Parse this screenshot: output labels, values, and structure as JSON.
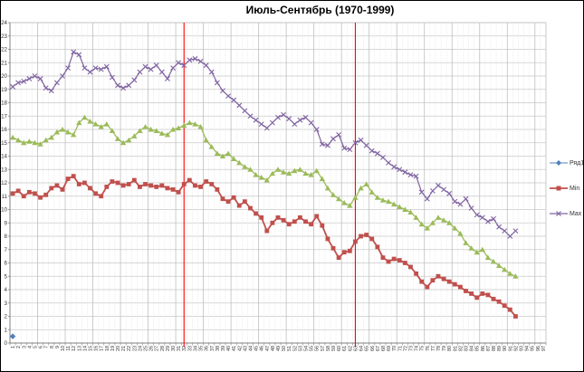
{
  "chart_data": {
    "type": "line",
    "title": "Июль-Сентябрь (1970-1999)",
    "xlabel": "",
    "ylabel": "",
    "ylim": [
      0,
      24
    ],
    "y_tick_step": 1,
    "y_tick_labels": [
      0,
      1,
      2,
      3,
      4,
      5,
      6,
      7,
      8,
      9,
      10,
      11,
      12,
      13,
      14,
      15,
      16,
      17,
      18,
      19,
      20,
      21,
      22,
      23,
      24
    ],
    "x_tick_labels": [
      1,
      2,
      3,
      4,
      5,
      6,
      7,
      8,
      9,
      10,
      11,
      12,
      13,
      14,
      15,
      16,
      17,
      18,
      19,
      20,
      21,
      22,
      23,
      24,
      25,
      26,
      27,
      28,
      29,
      30,
      31,
      32,
      33,
      34,
      35,
      36,
      37,
      38,
      39,
      40,
      41,
      42,
      43,
      44,
      45,
      46,
      47,
      48,
      49,
      50,
      51,
      52,
      53,
      54,
      55,
      56,
      57,
      58,
      59,
      60,
      61,
      62,
      63,
      64,
      65,
      66,
      67,
      68,
      69,
      70,
      71,
      72,
      73,
      74,
      75,
      76,
      77,
      78,
      79,
      80,
      81,
      82,
      83,
      84,
      85,
      86,
      87,
      88,
      89,
      90,
      91,
      92,
      93,
      94,
      95,
      96,
      97
    ],
    "grid": {
      "horizontal": "every 1 unit",
      "vertical": "every category, darker every 5th"
    },
    "legend_position": "right",
    "vlines": {
      "color": "#FF0000",
      "positions_after_category": [
        31.5,
        62.5
      ]
    },
    "colors": {
      "grid_light": "#DCDCDC",
      "grid_dark": "#BFBFBF",
      "axis": "#808080",
      "text": "#333333"
    },
    "series": [
      {
        "name": "Ряд1",
        "color": "#4F81BD",
        "marker": "diamond",
        "in_legend": true,
        "line_width": 1,
        "values": [
          0.5
        ]
      },
      {
        "name": "Min",
        "color": "#C0504D",
        "marker": "square",
        "in_legend": true,
        "line_width": 1.8,
        "values": [
          11.2,
          11.4,
          11.0,
          11.3,
          11.2,
          10.9,
          11.1,
          11.6,
          11.8,
          11.5,
          12.3,
          12.5,
          11.9,
          12.0,
          11.6,
          11.2,
          11.0,
          11.7,
          12.1,
          12.0,
          11.8,
          11.9,
          12.2,
          11.7,
          11.9,
          11.8,
          11.7,
          11.8,
          11.6,
          11.5,
          11.3,
          11.9,
          12.2,
          11.8,
          11.7,
          12.1,
          11.9,
          11.5,
          10.8,
          10.6,
          10.9,
          10.3,
          10.6,
          10.1,
          9.7,
          9.4,
          8.4,
          9.0,
          9.4,
          9.2,
          8.9,
          9.1,
          9.4,
          9.1,
          8.9,
          9.5,
          8.8,
          7.8,
          7.1,
          6.4,
          6.8,
          6.9,
          7.6,
          8.0,
          8.1,
          7.8,
          7.2,
          6.4,
          6.1,
          6.3,
          6.2,
          6.0,
          5.7,
          5.2,
          4.6,
          4.2,
          4.7,
          5.0,
          4.8,
          4.6,
          4.4,
          4.2,
          3.9,
          3.7,
          3.4,
          3.7,
          3.6,
          3.3,
          3.1,
          2.8,
          2.5,
          2.0
        ]
      },
      {
        "name": "Max",
        "color": "#8064A2",
        "marker": "x",
        "in_legend": true,
        "line_width": 1.2,
        "values": [
          19.2,
          19.5,
          19.6,
          19.8,
          20.0,
          19.8,
          19.1,
          18.9,
          19.5,
          20.0,
          20.6,
          21.8,
          21.6,
          20.6,
          20.3,
          20.6,
          20.5,
          20.7,
          19.9,
          19.3,
          19.1,
          19.3,
          19.7,
          20.3,
          20.7,
          20.5,
          20.8,
          20.3,
          19.8,
          20.6,
          21.0,
          20.8,
          21.2,
          21.3,
          21.1,
          20.8,
          20.3,
          19.5,
          18.9,
          18.5,
          18.2,
          17.8,
          17.4,
          17.0,
          16.7,
          16.4,
          16.1,
          16.5,
          16.9,
          17.1,
          16.8,
          16.4,
          16.7,
          16.9,
          16.5,
          16.0,
          14.9,
          14.8,
          15.3,
          15.6,
          14.6,
          14.5,
          15.0,
          15.2,
          14.8,
          14.4,
          14.2,
          13.9,
          13.5,
          13.2,
          13.0,
          12.8,
          12.6,
          12.5,
          11.3,
          10.8,
          11.4,
          11.8,
          11.5,
          11.2,
          10.6,
          10.4,
          10.8,
          10.1,
          9.6,
          9.4,
          9.1,
          9.3,
          8.7,
          8.4,
          8.0,
          8.4
        ]
      },
      {
        "name": "",
        "color": "#9BBB59",
        "marker": "triangle",
        "in_legend": false,
        "line_width": 1.3,
        "values": [
          15.4,
          15.2,
          15.0,
          15.1,
          15.0,
          14.9,
          15.2,
          15.4,
          15.8,
          16.0,
          15.8,
          15.6,
          16.5,
          16.9,
          16.6,
          16.4,
          16.2,
          16.4,
          15.9,
          15.3,
          15.0,
          15.2,
          15.5,
          15.9,
          16.2,
          16.0,
          15.9,
          15.7,
          15.6,
          16.0,
          16.1,
          16.3,
          16.5,
          16.4,
          16.2,
          15.2,
          14.7,
          14.2,
          14.0,
          14.2,
          13.8,
          13.5,
          13.2,
          13.0,
          12.6,
          12.4,
          12.2,
          12.7,
          13.0,
          12.8,
          12.7,
          12.9,
          13.0,
          12.7,
          12.6,
          12.9,
          12.3,
          11.6,
          11.1,
          10.8,
          10.5,
          10.3,
          10.9,
          11.6,
          11.9,
          11.3,
          10.9,
          10.7,
          10.6,
          10.4,
          10.2,
          10.0,
          9.8,
          9.4,
          8.9,
          8.6,
          9.0,
          9.4,
          9.2,
          9.0,
          8.6,
          8.2,
          7.5,
          7.1,
          6.8,
          7.0,
          6.4,
          6.1,
          5.8,
          5.5,
          5.2,
          5.0
        ]
      }
    ],
    "legend_entries": [
      "Ряд1",
      "Min",
      "Max"
    ]
  }
}
